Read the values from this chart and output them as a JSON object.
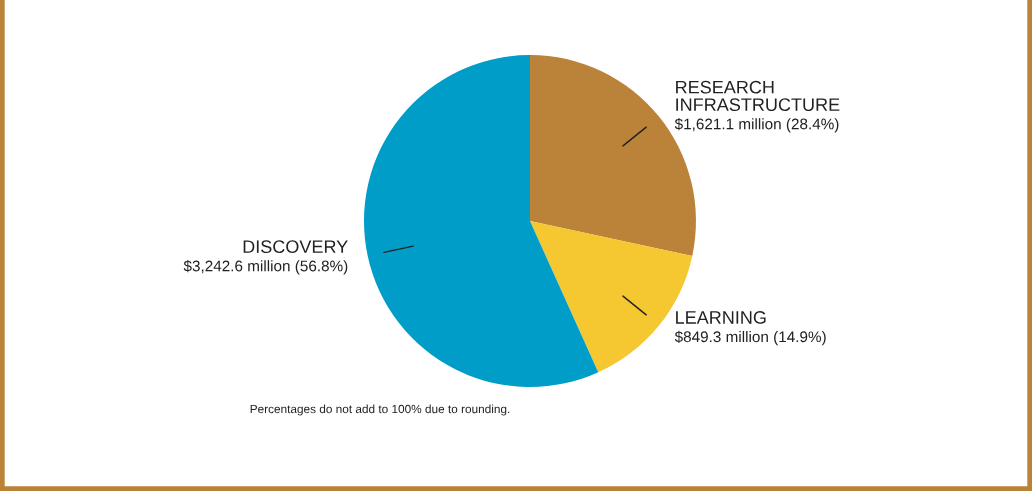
{
  "chart_data": {
    "type": "pie",
    "categories": [
      "RESEARCH\nINFRASTRUCTURE",
      "LEARNING",
      "DISCOVERY"
    ],
    "values": [
      28.4,
      14.9,
      56.8
    ],
    "value_labels": [
      "$1,621.1 million (28.4%)",
      "$849.3 million (14.9%)",
      "$3,242.6 million (56.8%)"
    ],
    "colors": [
      "#bb8239",
      "#f5c730",
      "#009dc9"
    ],
    "annotations": [
      "Percentages do not add to 100% due to rounding."
    ]
  }
}
